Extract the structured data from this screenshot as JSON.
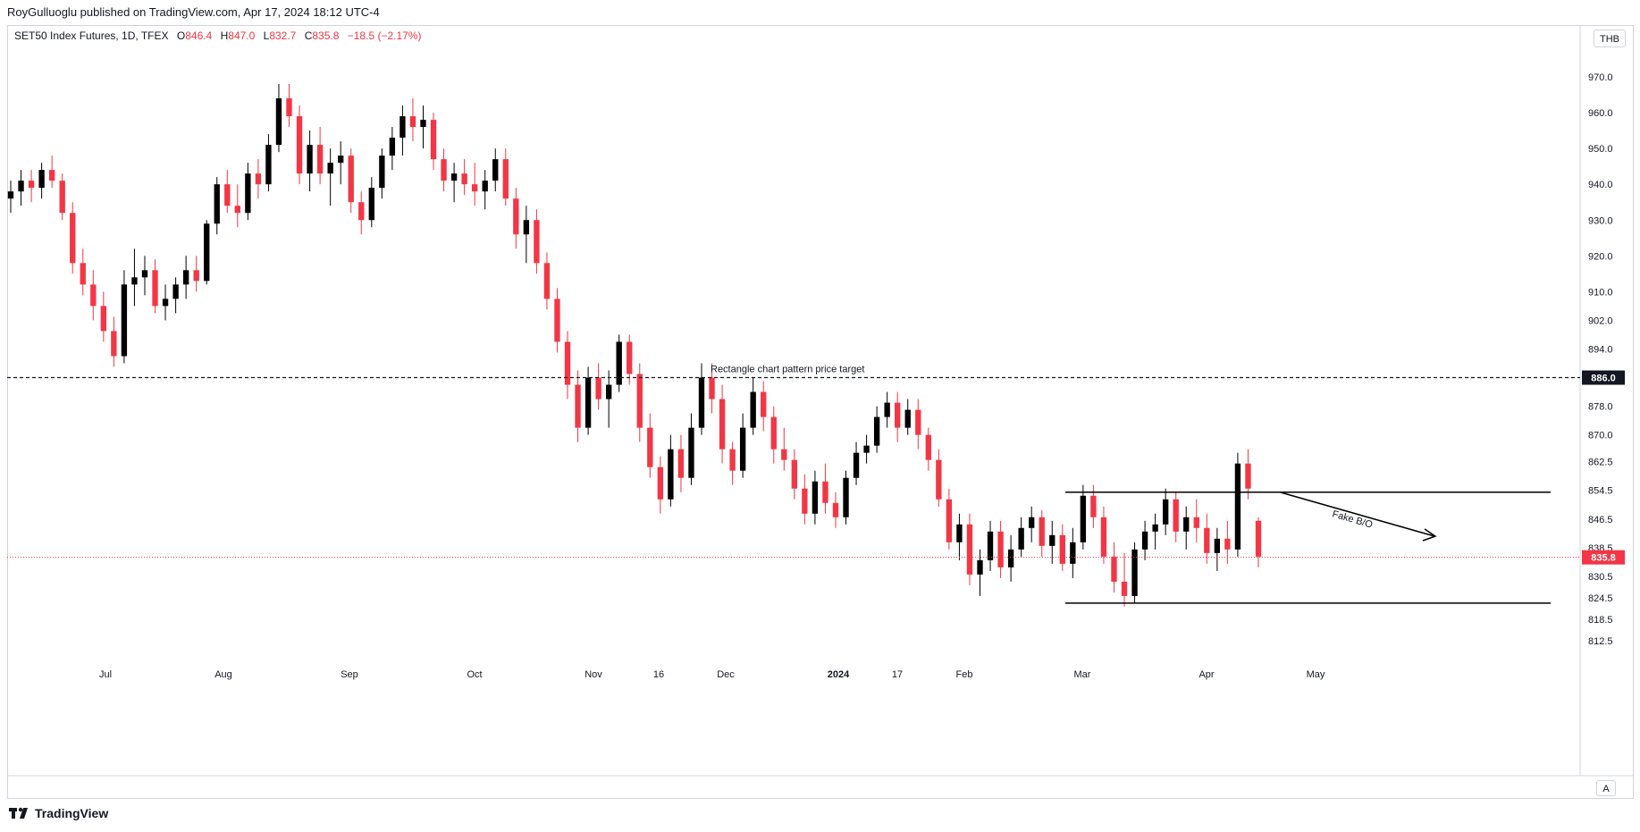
{
  "header": {
    "published": "RoyGulluoglu published on TradingView.com, Apr 17, 2024 18:12 UTC-4"
  },
  "legend": {
    "symbol": "SET50 Index Futures, 1D, TFEX",
    "o_label": "O",
    "o_value": "846.4",
    "h_label": "H",
    "h_value": "847.0",
    "l_label": "L",
    "l_value": "832.7",
    "c_label": "C",
    "c_value": "835.8",
    "change": "−18.5 (−2.17%)"
  },
  "currency": "THB",
  "auto_label": "A",
  "brand": "TradingView",
  "colors": {
    "up": "#000000",
    "down": "#f23645",
    "grid_line": "#131722",
    "price_tag_bg": "#f23645",
    "target_tag_bg": "#131722"
  },
  "chart_data": {
    "type": "candlestick",
    "ylim": [
      806,
      981
    ],
    "price_ticks": [
      "970.0",
      "960.0",
      "950.0",
      "940.0",
      "930.0",
      "920.0",
      "910.0",
      "902.0",
      "894.0",
      "878.0",
      "870.0",
      "862.5",
      "854.5",
      "846.5",
      "838.5",
      "830.5",
      "824.5",
      "818.5",
      "812.5"
    ],
    "time_ticks": [
      {
        "label": "Jul",
        "bold": false
      },
      {
        "label": "Aug",
        "bold": false
      },
      {
        "label": "Sep",
        "bold": false
      },
      {
        "label": "Oct",
        "bold": false
      },
      {
        "label": "Nov",
        "bold": false
      },
      {
        "label": "16",
        "bold": false
      },
      {
        "label": "Dec",
        "bold": false
      },
      {
        "label": "2024",
        "bold": true
      },
      {
        "label": "17",
        "bold": false
      },
      {
        "label": "Feb",
        "bold": false
      },
      {
        "label": "Mar",
        "bold": false
      },
      {
        "label": "Apr",
        "bold": false
      },
      {
        "label": "May",
        "bold": false
      }
    ],
    "target_price": "886.0",
    "last_price": "835.8",
    "annotations": {
      "target_text": "Rectangle chart pattern price target",
      "fake_text": "Fake B/O"
    },
    "rectangle": {
      "upper": 854,
      "lower": 823
    },
    "candles": [
      [
        936,
        941,
        932,
        938
      ],
      [
        938,
        944,
        934,
        941
      ],
      [
        941,
        944,
        935,
        939
      ],
      [
        939,
        946,
        936,
        944
      ],
      [
        944,
        948,
        939,
        941
      ],
      [
        941,
        943,
        930,
        932
      ],
      [
        932,
        935,
        915,
        918
      ],
      [
        918,
        922,
        909,
        912
      ],
      [
        912,
        916,
        902,
        906
      ],
      [
        906,
        910,
        896,
        899
      ],
      [
        899,
        903,
        889,
        892
      ],
      [
        892,
        916,
        890,
        912
      ],
      [
        912,
        922,
        906,
        914
      ],
      [
        914,
        920,
        909,
        916
      ],
      [
        916,
        919,
        904,
        906
      ],
      [
        906,
        912,
        902,
        908
      ],
      [
        908,
        914,
        904,
        912
      ],
      [
        912,
        920,
        908,
        916
      ],
      [
        916,
        920,
        910,
        913
      ],
      [
        913,
        930,
        912,
        929
      ],
      [
        929,
        942,
        926,
        940
      ],
      [
        940,
        944,
        932,
        934
      ],
      [
        934,
        940,
        928,
        932
      ],
      [
        932,
        946,
        930,
        943
      ],
      [
        943,
        947,
        936,
        940
      ],
      [
        940,
        954,
        938,
        951
      ],
      [
        951,
        968,
        949,
        964
      ],
      [
        964,
        968,
        956,
        959
      ],
      [
        959,
        962,
        940,
        943
      ],
      [
        943,
        955,
        938,
        951
      ],
      [
        951,
        956,
        940,
        943
      ],
      [
        943,
        950,
        934,
        946
      ],
      [
        946,
        952,
        940,
        948
      ],
      [
        948,
        950,
        932,
        935
      ],
      [
        935,
        938,
        926,
        930
      ],
      [
        930,
        942,
        928,
        939
      ],
      [
        939,
        950,
        936,
        948
      ],
      [
        948,
        956,
        944,
        953
      ],
      [
        953,
        962,
        948,
        959
      ],
      [
        959,
        964,
        952,
        956
      ],
      [
        956,
        962,
        950,
        958
      ],
      [
        958,
        960,
        944,
        947
      ],
      [
        947,
        950,
        938,
        941
      ],
      [
        941,
        946,
        935,
        943
      ],
      [
        943,
        947,
        937,
        940
      ],
      [
        940,
        946,
        934,
        938
      ],
      [
        938,
        944,
        933,
        941
      ],
      [
        941,
        950,
        938,
        947
      ],
      [
        947,
        950,
        934,
        936
      ],
      [
        936,
        939,
        922,
        926
      ],
      [
        926,
        934,
        918,
        930
      ],
      [
        930,
        933,
        915,
        918
      ],
      [
        918,
        921,
        905,
        908
      ],
      [
        908,
        911,
        893,
        896
      ],
      [
        896,
        899,
        880,
        884
      ],
      [
        884,
        888,
        868,
        872
      ],
      [
        872,
        889,
        870,
        886
      ],
      [
        886,
        890,
        877,
        880
      ],
      [
        880,
        888,
        872,
        884
      ],
      [
        884,
        898,
        882,
        896
      ],
      [
        896,
        898,
        884,
        887
      ],
      [
        887,
        890,
        868,
        872
      ],
      [
        872,
        876,
        858,
        861
      ],
      [
        861,
        864,
        848,
        852
      ],
      [
        852,
        870,
        850,
        866
      ],
      [
        866,
        870,
        854,
        858
      ],
      [
        858,
        876,
        856,
        872
      ],
      [
        872,
        890,
        870,
        886
      ],
      [
        886,
        890,
        876,
        880
      ],
      [
        880,
        884,
        862,
        866
      ],
      [
        866,
        868,
        856,
        860
      ],
      [
        860,
        876,
        858,
        872
      ],
      [
        872,
        886,
        870,
        882
      ],
      [
        882,
        885,
        871,
        875
      ],
      [
        875,
        878,
        862,
        866
      ],
      [
        866,
        872,
        860,
        863
      ],
      [
        863,
        866,
        852,
        855
      ],
      [
        855,
        859,
        845,
        848
      ],
      [
        848,
        860,
        845,
        857
      ],
      [
        857,
        862,
        848,
        851
      ],
      [
        851,
        854,
        844,
        847
      ],
      [
        847,
        860,
        845,
        858
      ],
      [
        858,
        868,
        856,
        865
      ],
      [
        865,
        870,
        862,
        867
      ],
      [
        867,
        878,
        865,
        875
      ],
      [
        875,
        882,
        872,
        879
      ],
      [
        879,
        882,
        868,
        872
      ],
      [
        872,
        880,
        870,
        877
      ],
      [
        877,
        880,
        866,
        870
      ],
      [
        870,
        872,
        860,
        863
      ],
      [
        863,
        866,
        850,
        852
      ],
      [
        852,
        855,
        838,
        840
      ],
      [
        840,
        848,
        835,
        845
      ],
      [
        845,
        848,
        828,
        831
      ],
      [
        831,
        838,
        825,
        835
      ],
      [
        835,
        846,
        832,
        843
      ],
      [
        843,
        846,
        830,
        833
      ],
      [
        833,
        842,
        829,
        838
      ],
      [
        838,
        847,
        836,
        844
      ],
      [
        844,
        850,
        840,
        847
      ],
      [
        847,
        849,
        836,
        839
      ],
      [
        839,
        846,
        834,
        842
      ],
      [
        842,
        845,
        832,
        834
      ],
      [
        834,
        844,
        830,
        840
      ],
      [
        840,
        856,
        838,
        853
      ],
      [
        853,
        856,
        844,
        847
      ],
      [
        847,
        850,
        834,
        836
      ],
      [
        836,
        840,
        826,
        829
      ],
      [
        829,
        837,
        822,
        825
      ],
      [
        825,
        840,
        823,
        838
      ],
      [
        838,
        846,
        835,
        843
      ],
      [
        843,
        848,
        838,
        845
      ],
      [
        845,
        855,
        842,
        852
      ],
      [
        852,
        854,
        840,
        843
      ],
      [
        843,
        850,
        838,
        847
      ],
      [
        847,
        852,
        840,
        844
      ],
      [
        844,
        848,
        834,
        837
      ],
      [
        837,
        844,
        832,
        841
      ],
      [
        841,
        846,
        834,
        838
      ],
      [
        838,
        865,
        836,
        862
      ],
      [
        862,
        866,
        852,
        855
      ],
      [
        846,
        847,
        833,
        836
      ]
    ]
  }
}
